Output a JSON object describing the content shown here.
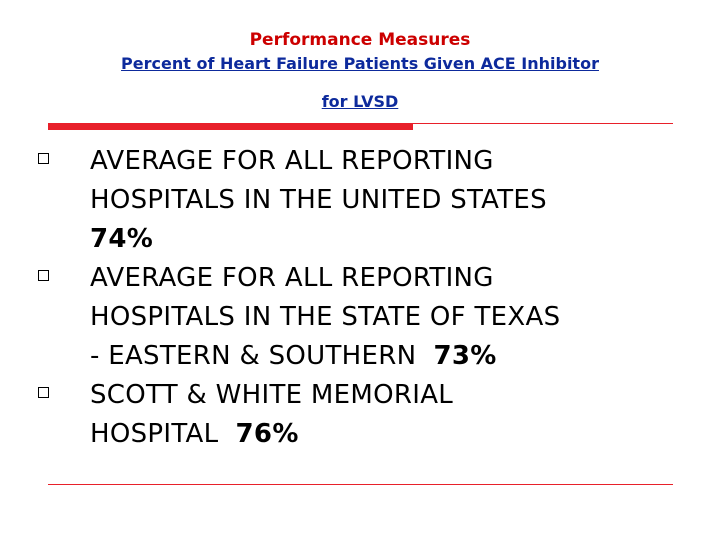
{
  "header": {
    "title": "Performance Measures",
    "subtitle": "Percent of Heart Failure Patients Given ACE Inhibitor",
    "subtitle_cont": "for LVSD"
  },
  "items": [
    {
      "line1": "AVERAGE FOR ALL REPORTING",
      "line2": "HOSPITALS IN THE UNITED STATES",
      "line3_prefix": "",
      "value": "74%"
    },
    {
      "line1": "AVERAGE FOR ALL REPORTING",
      "line2": "HOSPITALS IN THE STATE OF TEXAS",
      "line3_prefix": "- EASTERN & SOUTHERN  ",
      "value": "73%"
    },
    {
      "line1": "SCOTT & WHITE MEMORIAL",
      "line2_prefix": "HOSPITAL  ",
      "value": "76%"
    }
  ],
  "colors": {
    "title": "#cc0000",
    "subtitle": "#0d2a9c",
    "rule": "#e8202a"
  }
}
